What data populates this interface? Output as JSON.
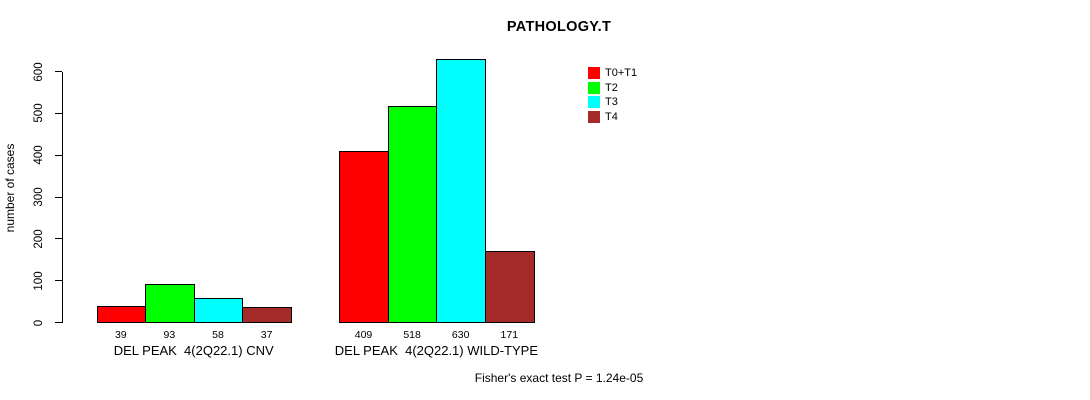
{
  "chart_data": {
    "type": "bar",
    "title": "PATHOLOGY.T",
    "ylabel": "number of cases",
    "ylim": [
      0,
      600
    ],
    "yticks": [
      0,
      100,
      200,
      300,
      400,
      500,
      600
    ],
    "grid": false,
    "legend_position": "top-right",
    "categories": [
      "DEL PEAK  4(2Q22.1) CNV",
      "DEL PEAK  4(2Q22.1) WILD-TYPE"
    ],
    "series": [
      {
        "name": "T0+T1",
        "color": "#FF0000",
        "values": [
          39,
          409
        ]
      },
      {
        "name": "T2",
        "color": "#00FF00",
        "values": [
          93,
          518
        ]
      },
      {
        "name": "T3",
        "color": "#00FFFF",
        "values": [
          58,
          630
        ]
      },
      {
        "name": "T4",
        "color": "#A52A2A",
        "values": [
          37,
          171
        ]
      }
    ],
    "bar_value_labels": true,
    "footnote": "Fisher's exact test P = 1.24e-05"
  }
}
